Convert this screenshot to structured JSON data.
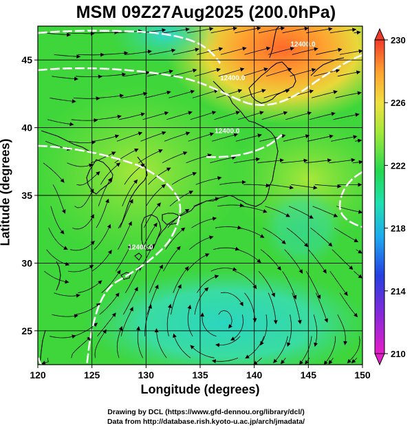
{
  "title": "MSM 09Z27Aug2025 (200.0hPa)",
  "xlabel": "Longitude (degrees)",
  "ylabel": "Latitude  (degrees)",
  "credit_line1": "Drawing by DCL (https://www.gfd-dennou.org/library/dcl/)",
  "credit_line2": "Data from http://database.rish.kyoto-u.ac.jp/arch/jmadata/",
  "map": {
    "lon_range": [
      120,
      150
    ],
    "lat_range": [
      22.5,
      47.5
    ],
    "lon_ticks": [
      120,
      125,
      130,
      135,
      140,
      145,
      150
    ],
    "lat_ticks": [
      25,
      30,
      35,
      40,
      45
    ],
    "lon_tick_labels": [
      "120",
      "125",
      "130",
      "135",
      "140",
      "145",
      "150"
    ],
    "lat_tick_labels": [
      "25",
      "30",
      "35",
      "40",
      "45"
    ],
    "contour_labels": [
      {
        "text": "12400.0",
        "lon": 138.0,
        "lat": 43.5
      },
      {
        "text": "12400.0",
        "lon": 137.5,
        "lat": 39.6
      },
      {
        "text": "12400.0",
        "lon": 129.5,
        "lat": 31.0
      },
      {
        "text": "12400.0",
        "lon": 144.5,
        "lat": 46.0
      }
    ],
    "field_legend": "shading",
    "contour_color": "#ffffff",
    "streamline_color": "#000000",
    "coast_color": "#000000"
  },
  "colorbar": {
    "min": 210,
    "max": 230,
    "ticks": [
      210,
      214,
      218,
      222,
      226,
      230
    ],
    "tick_labels": [
      "210",
      "214",
      "218",
      "222",
      "226",
      "230"
    ]
  }
}
